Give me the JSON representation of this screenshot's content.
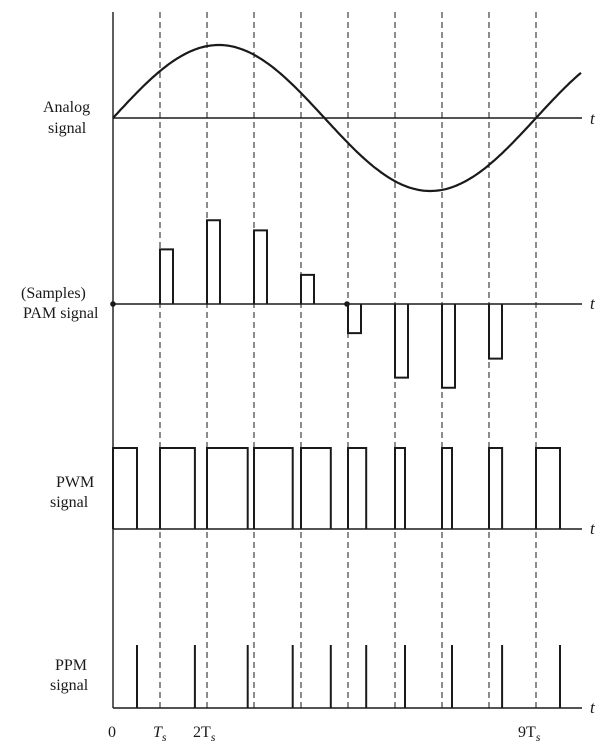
{
  "labels": {
    "analog": [
      "Analog",
      "signal"
    ],
    "pam": [
      "(Samples)",
      "PAM signal"
    ],
    "pwm": [
      "PWM",
      "signal"
    ],
    "ppm": [
      "PPM",
      "signal"
    ],
    "time_axis": "t"
  },
  "ticks": {
    "zero": "0",
    "ts": "T",
    "two_ts": "2T",
    "nine_ts": "9T",
    "subscript": "s"
  },
  "signal_model": {
    "samples_per_period": 9,
    "sample_times_in_Ts": [
      1,
      2,
      3,
      4,
      5,
      6,
      7,
      8,
      9
    ],
    "analog_periods_shown": 1
  }
}
